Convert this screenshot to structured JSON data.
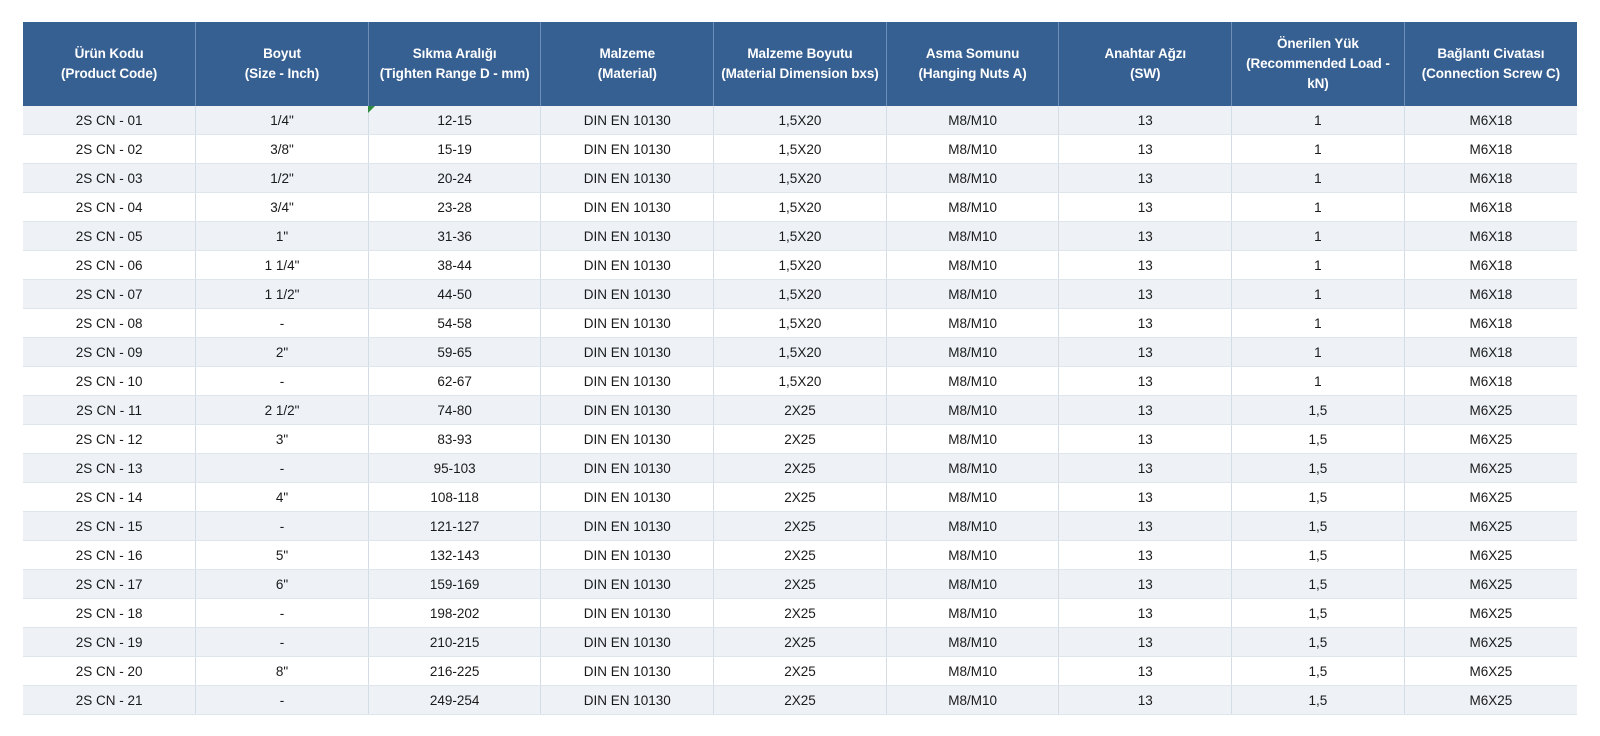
{
  "table": {
    "headers": [
      "Ürün Kodu\n(Product Code)",
      "Boyut\n(Size - Inch)",
      "Sıkma Aralığı\n(Tighten Range D - mm)",
      "Malzeme\n(Material)",
      "Malzeme Boyutu\n(Material Dimension bxs)",
      "Asma Somunu\n(Hanging Nuts A)",
      "Anahtar Ağzı\n(SW)",
      "Önerilen Yük\n(Recommended Load -\nkN)",
      "Bağlantı Civatası\n(Connection Screw C)"
    ],
    "rows": [
      [
        "2S CN - 01",
        "1/4\"",
        "12-15",
        "DIN EN 10130",
        "1,5X20",
        "M8/M10",
        "13",
        "1",
        "M6X18"
      ],
      [
        "2S CN - 02",
        "3/8\"",
        "15-19",
        "DIN EN 10130",
        "1,5X20",
        "M8/M10",
        "13",
        "1",
        "M6X18"
      ],
      [
        "2S CN - 03",
        "1/2\"",
        "20-24",
        "DIN EN 10130",
        "1,5X20",
        "M8/M10",
        "13",
        "1",
        "M6X18"
      ],
      [
        "2S CN - 04",
        "3/4\"",
        "23-28",
        "DIN EN 10130",
        "1,5X20",
        "M8/M10",
        "13",
        "1",
        "M6X18"
      ],
      [
        "2S CN - 05",
        "1\"",
        "31-36",
        "DIN EN 10130",
        "1,5X20",
        "M8/M10",
        "13",
        "1",
        "M6X18"
      ],
      [
        "2S CN - 06",
        "1 1/4\"",
        "38-44",
        "DIN EN 10130",
        "1,5X20",
        "M8/M10",
        "13",
        "1",
        "M6X18"
      ],
      [
        "2S CN - 07",
        "1 1/2\"",
        "44-50",
        "DIN EN 10130",
        "1,5X20",
        "M8/M10",
        "13",
        "1",
        "M6X18"
      ],
      [
        "2S CN - 08",
        "-",
        "54-58",
        "DIN EN 10130",
        "1,5X20",
        "M8/M10",
        "13",
        "1",
        "M6X18"
      ],
      [
        "2S CN - 09",
        "2\"",
        "59-65",
        "DIN EN 10130",
        "1,5X20",
        "M8/M10",
        "13",
        "1",
        "M6X18"
      ],
      [
        "2S CN - 10",
        "-",
        "62-67",
        "DIN EN 10130",
        "1,5X20",
        "M8/M10",
        "13",
        "1",
        "M6X18"
      ],
      [
        "2S CN - 11",
        "2 1/2\"",
        "74-80",
        "DIN EN 10130",
        "2X25",
        "M8/M10",
        "13",
        "1,5",
        "M6X25"
      ],
      [
        "2S CN - 12",
        "3\"",
        "83-93",
        "DIN EN 10130",
        "2X25",
        "M8/M10",
        "13",
        "1,5",
        "M6X25"
      ],
      [
        "2S CN - 13",
        "-",
        "95-103",
        "DIN EN 10130",
        "2X25",
        "M8/M10",
        "13",
        "1,5",
        "M6X25"
      ],
      [
        "2S CN - 14",
        "4\"",
        "108-118",
        "DIN EN 10130",
        "2X25",
        "M8/M10",
        "13",
        "1,5",
        "M6X25"
      ],
      [
        "2S CN - 15",
        "-",
        "121-127",
        "DIN EN 10130",
        "2X25",
        "M8/M10",
        "13",
        "1,5",
        "M6X25"
      ],
      [
        "2S CN - 16",
        "5\"",
        "132-143",
        "DIN EN 10130",
        "2X25",
        "M8/M10",
        "13",
        "1,5",
        "M6X25"
      ],
      [
        "2S CN - 17",
        "6\"",
        "159-169",
        "DIN EN 10130",
        "2X25",
        "M8/M10",
        "13",
        "1,5",
        "M6X25"
      ],
      [
        "2S CN - 18",
        "-",
        "198-202",
        "DIN EN 10130",
        "2X25",
        "M8/M10",
        "13",
        "1,5",
        "M6X25"
      ],
      [
        "2S CN - 19",
        "-",
        "210-215",
        "DIN EN 10130",
        "2X25",
        "M8/M10",
        "13",
        "1,5",
        "M6X25"
      ],
      [
        "2S CN - 20",
        "8\"",
        "216-225",
        "DIN EN 10130",
        "2X25",
        "M8/M10",
        "13",
        "1,5",
        "M6X25"
      ],
      [
        "2S CN - 21",
        "-",
        "249-254",
        "DIN EN 10130",
        "2X25",
        "M8/M10",
        "13",
        "1,5",
        "M6X25"
      ]
    ]
  },
  "colors": {
    "header_bg": "#376092",
    "header_text": "#ffffff",
    "row_alt_bg": "#eef2f7",
    "row_bg": "#ffffff",
    "cell_marker": "#2e8b3d"
  }
}
